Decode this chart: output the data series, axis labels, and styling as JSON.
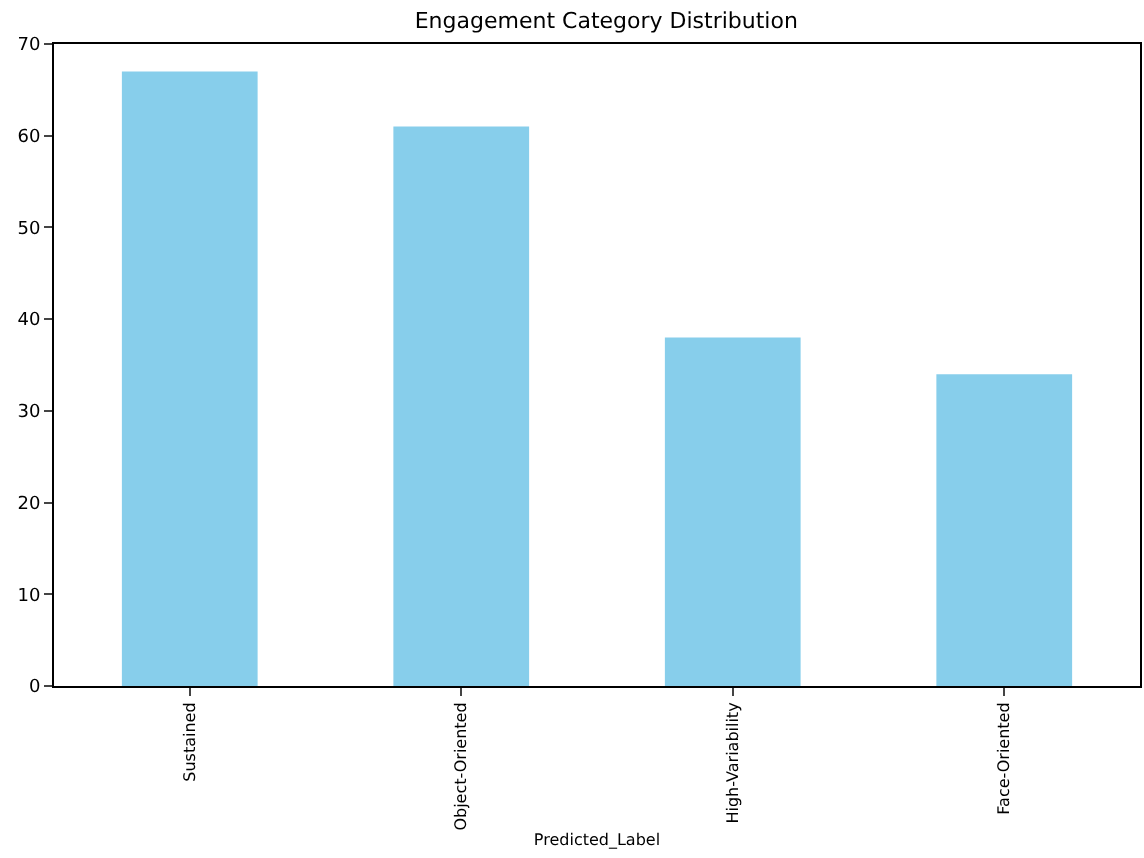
{
  "chart_data": {
    "type": "bar",
    "title": "Engagement Category Distribution",
    "xlabel": "Predicted_Label",
    "categories": [
      "Sustained",
      "Object-Oriented",
      "High-Variability",
      "Face-Oriented"
    ],
    "values": [
      67,
      61,
      38,
      34
    ],
    "color": "#87ceeb",
    "ylim": [
      0,
      70
    ],
    "yticks": [
      0,
      10,
      20,
      30,
      40,
      50,
      60,
      70
    ],
    "grid": false,
    "legend": false
  }
}
